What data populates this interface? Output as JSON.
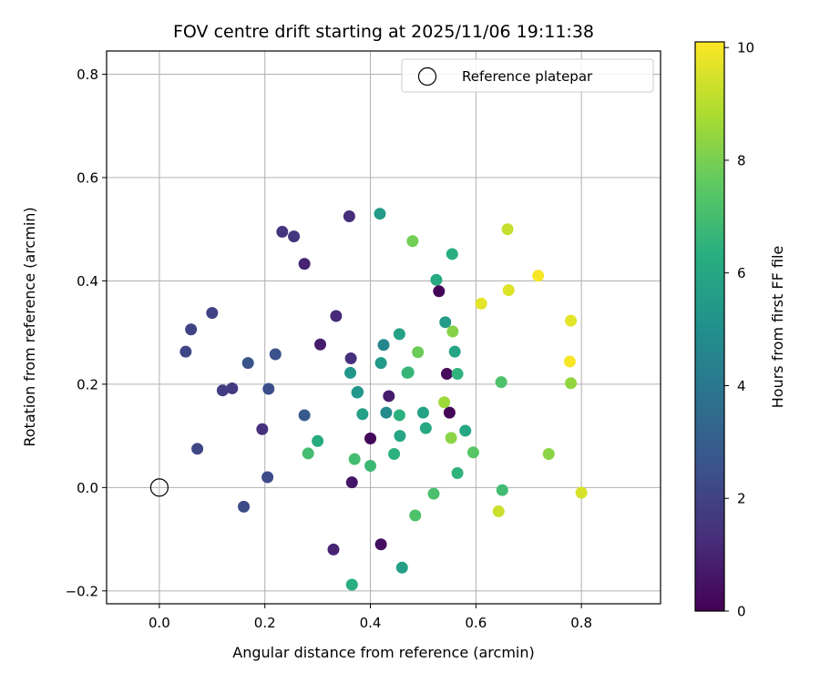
{
  "chart_data": {
    "type": "scatter",
    "title": "FOV centre drift starting at 2025/11/06 19:11:38",
    "xlabel": "Angular distance from reference (arcmin)",
    "ylabel": "Rotation from reference (arcmin)",
    "xlim": [
      -0.1,
      0.95
    ],
    "ylim": [
      -0.225,
      0.845
    ],
    "xticks": [
      0.0,
      0.2,
      0.4,
      0.6,
      0.8
    ],
    "xtick_labels": [
      "0.0",
      "0.2",
      "0.4",
      "0.6",
      "0.8"
    ],
    "yticks": [
      -0.2,
      0.0,
      0.2,
      0.4,
      0.6,
      0.8
    ],
    "ytick_labels": [
      "−0.2",
      "0.0",
      "0.2",
      "0.4",
      "0.6",
      "0.8"
    ],
    "grid": true,
    "legend": {
      "label": "Reference platepar",
      "position": "top-right"
    },
    "reference_point": {
      "x": 0.0,
      "y": 0.0
    },
    "colorbar": {
      "label": "Hours from first FF file",
      "range": [
        0,
        10.1
      ],
      "ticks": [
        0,
        2,
        4,
        6,
        8,
        10
      ],
      "tick_labels": [
        "0",
        "2",
        "4",
        "6",
        "8",
        "10"
      ],
      "colormap": "viridis"
    },
    "points": [
      {
        "x": 0.42,
        "y": -0.11,
        "hours": 0.4
      },
      {
        "x": 0.4,
        "y": 0.095,
        "hours": 0.2
      },
      {
        "x": 0.55,
        "y": 0.145,
        "hours": 0.1
      },
      {
        "x": 0.53,
        "y": 0.38,
        "hours": 0.1
      },
      {
        "x": 0.545,
        "y": 0.22,
        "hours": 0.3
      },
      {
        "x": 0.365,
        "y": 0.01,
        "hours": 0.6
      },
      {
        "x": 0.435,
        "y": 0.177,
        "hours": 0.8
      },
      {
        "x": 0.305,
        "y": 0.277,
        "hours": 0.8
      },
      {
        "x": 0.275,
        "y": 0.433,
        "hours": 1.0
      },
      {
        "x": 0.33,
        "y": -0.12,
        "hours": 1.0
      },
      {
        "x": 0.335,
        "y": 0.332,
        "hours": 1.2
      },
      {
        "x": 0.36,
        "y": 0.525,
        "hours": 1.3
      },
      {
        "x": 0.363,
        "y": 0.25,
        "hours": 1.4
      },
      {
        "x": 0.195,
        "y": 0.113,
        "hours": 1.4
      },
      {
        "x": 0.233,
        "y": 0.495,
        "hours": 1.5
      },
      {
        "x": 0.255,
        "y": 0.486,
        "hours": 1.6
      },
      {
        "x": 0.138,
        "y": 0.192,
        "hours": 1.7
      },
      {
        "x": 0.12,
        "y": 0.188,
        "hours": 1.8
      },
      {
        "x": 0.1,
        "y": 0.338,
        "hours": 2.0
      },
      {
        "x": 0.06,
        "y": 0.306,
        "hours": 2.0
      },
      {
        "x": 0.05,
        "y": 0.263,
        "hours": 2.1
      },
      {
        "x": 0.072,
        "y": 0.075,
        "hours": 2.2
      },
      {
        "x": 0.205,
        "y": 0.02,
        "hours": 2.3
      },
      {
        "x": 0.16,
        "y": -0.037,
        "hours": 2.3
      },
      {
        "x": 0.207,
        "y": 0.191,
        "hours": 2.4
      },
      {
        "x": 0.22,
        "y": 0.258,
        "hours": 2.5
      },
      {
        "x": 0.168,
        "y": 0.241,
        "hours": 2.6
      },
      {
        "x": 0.275,
        "y": 0.14,
        "hours": 2.8
      },
      {
        "x": 0.425,
        "y": 0.276,
        "hours": 4.6
      },
      {
        "x": 0.43,
        "y": 0.145,
        "hours": 4.8
      },
      {
        "x": 0.375,
        "y": 0.184,
        "hours": 5.2
      },
      {
        "x": 0.376,
        "y": 0.185,
        "hours": 5.3
      },
      {
        "x": 0.362,
        "y": 0.222,
        "hours": 5.3
      },
      {
        "x": 0.42,
        "y": 0.241,
        "hours": 5.4
      },
      {
        "x": 0.418,
        "y": 0.53,
        "hours": 5.5
      },
      {
        "x": 0.542,
        "y": 0.32,
        "hours": 5.5
      },
      {
        "x": 0.385,
        "y": 0.142,
        "hours": 5.7
      },
      {
        "x": 0.46,
        "y": -0.155,
        "hours": 5.7
      },
      {
        "x": 0.5,
        "y": 0.145,
        "hours": 5.8
      },
      {
        "x": 0.455,
        "y": 0.297,
        "hours": 5.8
      },
      {
        "x": 0.56,
        "y": 0.263,
        "hours": 5.9
      },
      {
        "x": 0.456,
        "y": 0.1,
        "hours": 5.9
      },
      {
        "x": 0.58,
        "y": 0.11,
        "hours": 6.0
      },
      {
        "x": 0.525,
        "y": 0.402,
        "hours": 6.1
      },
      {
        "x": 0.505,
        "y": 0.115,
        "hours": 6.1
      },
      {
        "x": 0.3,
        "y": 0.09,
        "hours": 6.2
      },
      {
        "x": 0.555,
        "y": 0.452,
        "hours": 6.3
      },
      {
        "x": 0.365,
        "y": -0.188,
        "hours": 6.3
      },
      {
        "x": 0.445,
        "y": 0.065,
        "hours": 6.4
      },
      {
        "x": 0.455,
        "y": 0.14,
        "hours": 6.4
      },
      {
        "x": 0.565,
        "y": 0.028,
        "hours": 6.5
      },
      {
        "x": 0.565,
        "y": 0.22,
        "hours": 6.5
      },
      {
        "x": 0.47,
        "y": 0.222,
        "hours": 6.6
      },
      {
        "x": 0.472,
        "y": 0.223,
        "hours": 6.7
      },
      {
        "x": 0.4,
        "y": 0.042,
        "hours": 6.8
      },
      {
        "x": 0.65,
        "y": -0.005,
        "hours": 6.9
      },
      {
        "x": 0.37,
        "y": 0.055,
        "hours": 7.0
      },
      {
        "x": 0.282,
        "y": 0.066,
        "hours": 7.0
      },
      {
        "x": 0.52,
        "y": -0.012,
        "hours": 7.1
      },
      {
        "x": 0.485,
        "y": -0.054,
        "hours": 7.2
      },
      {
        "x": 0.648,
        "y": 0.204,
        "hours": 7.2
      },
      {
        "x": 0.595,
        "y": 0.068,
        "hours": 7.4
      },
      {
        "x": 0.49,
        "y": 0.262,
        "hours": 7.8
      },
      {
        "x": 0.48,
        "y": 0.477,
        "hours": 7.9
      },
      {
        "x": 0.556,
        "y": 0.302,
        "hours": 8.2
      },
      {
        "x": 0.553,
        "y": 0.096,
        "hours": 8.3
      },
      {
        "x": 0.738,
        "y": 0.065,
        "hours": 8.3
      },
      {
        "x": 0.78,
        "y": 0.202,
        "hours": 8.4
      },
      {
        "x": 0.54,
        "y": 0.165,
        "hours": 8.6
      },
      {
        "x": 0.66,
        "y": 0.5,
        "hours": 9.2
      },
      {
        "x": 0.643,
        "y": -0.046,
        "hours": 9.3
      },
      {
        "x": 0.8,
        "y": -0.01,
        "hours": 9.5
      },
      {
        "x": 0.662,
        "y": 0.382,
        "hours": 9.6
      },
      {
        "x": 0.61,
        "y": 0.356,
        "hours": 9.7
      },
      {
        "x": 0.78,
        "y": 0.323,
        "hours": 9.7
      },
      {
        "x": 0.718,
        "y": 0.41,
        "hours": 10.0
      },
      {
        "x": 0.778,
        "y": 0.244,
        "hours": 10.0
      }
    ]
  }
}
